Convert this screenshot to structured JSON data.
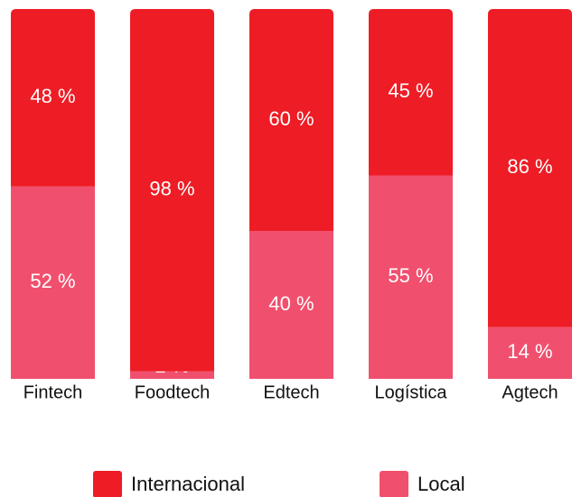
{
  "chart_data": {
    "type": "stacked_bar",
    "categories": [
      "Fintech",
      "Foodtech",
      "Edtech",
      "Logística",
      "Agtech"
    ],
    "series": [
      {
        "name": "Internacional",
        "color": "#ee1c25",
        "values": [
          48,
          98,
          60,
          45,
          86
        ],
        "value_labels": [
          "48 %",
          "98 %",
          "60 %",
          "45 %",
          "86 %"
        ]
      },
      {
        "name": "Local",
        "color": "#f0506e",
        "values": [
          52,
          2,
          40,
          55,
          14
        ],
        "value_labels": [
          "52 %",
          "2 %",
          "40 %",
          "55 %",
          "14 %"
        ]
      }
    ]
  }
}
